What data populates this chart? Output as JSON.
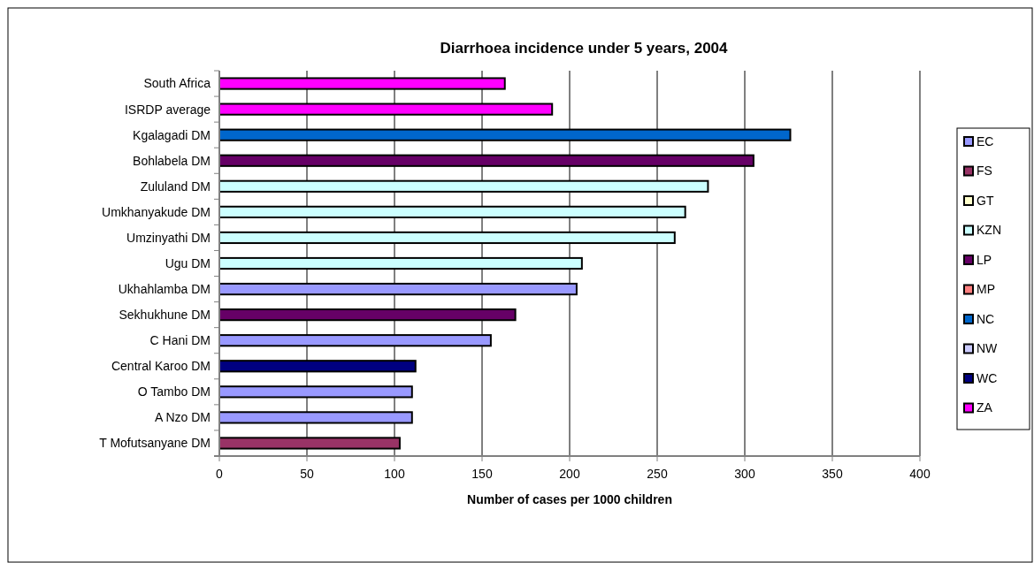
{
  "chart_data": {
    "type": "bar",
    "orientation": "horizontal",
    "title": "Diarrhoea incidence under 5 years, 2004",
    "xlabel": "Number of cases per 1000 children",
    "categories": [
      "South Africa",
      "ISRDP average",
      "Kgalagadi DM",
      "Bohlabela DM",
      "Zululand DM",
      "Umkhanyakude DM",
      "Umzinyathi DM",
      "Ugu DM",
      "Ukhahlamba DM",
      "Sekhukhune DM",
      "C Hani DM",
      "Central Karoo DM",
      "O Tambo DM",
      "A Nzo DM",
      "T Mofutsanyane DM"
    ],
    "series": [
      {
        "name": "EC",
        "color": "#9999ff",
        "values": [
          null,
          null,
          null,
          null,
          null,
          null,
          null,
          null,
          204,
          null,
          155,
          null,
          110,
          110,
          null
        ]
      },
      {
        "name": "FS",
        "color": "#993366",
        "values": [
          null,
          null,
          null,
          null,
          null,
          null,
          null,
          null,
          null,
          null,
          null,
          null,
          null,
          null,
          103
        ]
      },
      {
        "name": "GT",
        "color": "#ffffcc",
        "values": [
          null,
          null,
          null,
          null,
          null,
          null,
          null,
          null,
          null,
          null,
          null,
          null,
          null,
          null,
          null
        ]
      },
      {
        "name": "KZN",
        "color": "#ccffff",
        "values": [
          null,
          null,
          null,
          null,
          279,
          266,
          260,
          207,
          null,
          null,
          null,
          null,
          null,
          null,
          null
        ]
      },
      {
        "name": "LP",
        "color": "#660066",
        "values": [
          null,
          null,
          null,
          305,
          null,
          null,
          null,
          null,
          null,
          169,
          null,
          null,
          null,
          null,
          null
        ]
      },
      {
        "name": "MP",
        "color": "#ff8080",
        "values": [
          null,
          null,
          null,
          null,
          null,
          null,
          null,
          null,
          null,
          null,
          null,
          null,
          null,
          null,
          null
        ]
      },
      {
        "name": "NC",
        "color": "#0066cc",
        "values": [
          null,
          null,
          326,
          null,
          null,
          null,
          null,
          null,
          null,
          null,
          null,
          null,
          null,
          null,
          null
        ]
      },
      {
        "name": "NW",
        "color": "#ccccff",
        "values": [
          null,
          null,
          null,
          null,
          null,
          null,
          null,
          null,
          null,
          null,
          null,
          null,
          null,
          null,
          null
        ]
      },
      {
        "name": "WC",
        "color": "#000080",
        "values": [
          null,
          null,
          null,
          null,
          null,
          null,
          null,
          null,
          null,
          null,
          null,
          112,
          null,
          null,
          null
        ]
      },
      {
        "name": "ZA",
        "color": "#ff00ff",
        "values": [
          163,
          190,
          null,
          null,
          null,
          null,
          null,
          null,
          null,
          null,
          null,
          null,
          null,
          null,
          null
        ]
      }
    ],
    "xlim": [
      0,
      400
    ],
    "xticks": [
      0,
      50,
      100,
      150,
      200,
      250,
      300,
      350,
      400
    ],
    "grid": "x",
    "legend": "right"
  }
}
